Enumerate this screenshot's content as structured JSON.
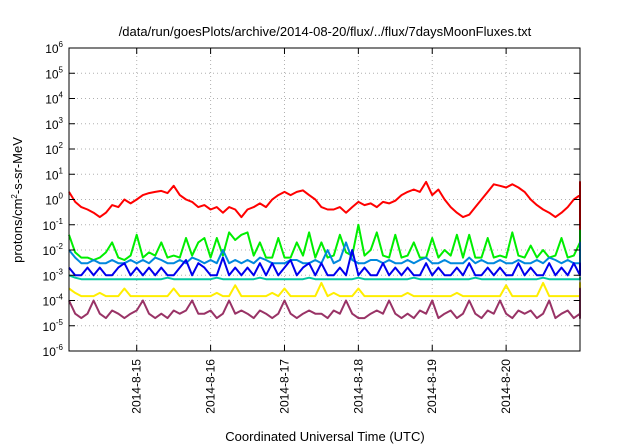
{
  "chart_data": {
    "type": "line",
    "title": "/data/run/goesPlots/archive/2014-08-20/flux/../flux/7daysMoonFluxes.txt",
    "xlabel": "Coordinated Universal Time (UTC)",
    "ylabel": {
      "text": "protons/cm",
      "sup": "2",
      "suffix": "-s-sr-MeV"
    },
    "y_scale": "log",
    "ylim": [
      1e-06,
      1000000.0
    ],
    "y_ticks": [
      {
        "base": "10",
        "exp": "-6",
        "value": 1e-06
      },
      {
        "base": "10",
        "exp": "-5",
        "value": 1e-05
      },
      {
        "base": "10",
        "exp": "-4",
        "value": 0.0001
      },
      {
        "base": "10",
        "exp": "-3",
        "value": 0.001
      },
      {
        "base": "10",
        "exp": "-2",
        "value": 0.01
      },
      {
        "base": "10",
        "exp": "-1",
        "value": 0.1
      },
      {
        "base": "10",
        "exp": "0",
        "value": 1
      },
      {
        "base": "10",
        "exp": "1",
        "value": 10
      },
      {
        "base": "10",
        "exp": "2",
        "value": 100
      },
      {
        "base": "10",
        "exp": "3",
        "value": 1000
      },
      {
        "base": "10",
        "exp": "4",
        "value": 10000
      },
      {
        "base": "10",
        "exp": "5",
        "value": 100000
      },
      {
        "base": "10",
        "exp": "6",
        "value": 1000000
      }
    ],
    "xlim": [
      "2014-08-14 02:00",
      "2014-08-21 00:00"
    ],
    "x_ticks": [
      {
        "label": "2014-8-15",
        "value": "2014-08-15"
      },
      {
        "label": "2014-8-16",
        "value": "2014-08-16"
      },
      {
        "label": "2014-8-17",
        "value": "2014-08-17"
      },
      {
        "label": "2014-8-18",
        "value": "2014-08-18"
      },
      {
        "label": "2014-8-19",
        "value": "2014-08-19"
      },
      {
        "label": "2014-8-20",
        "value": "2014-08-20"
      }
    ],
    "grid": true,
    "x_start": "2014-08-14 02:00",
    "x_step_hours": 2,
    "series": [
      {
        "color": "#ff0000",
        "values": [
          2.0,
          0.8,
          0.5,
          0.4,
          0.3,
          0.2,
          0.3,
          0.6,
          0.5,
          1.0,
          0.7,
          1.0,
          1.5,
          1.8,
          2.0,
          2.2,
          1.8,
          3.5,
          1.5,
          1.0,
          0.8,
          0.5,
          0.6,
          0.4,
          0.5,
          0.3,
          0.5,
          0.4,
          0.2,
          0.4,
          0.5,
          0.7,
          0.5,
          1.0,
          1.5,
          2.0,
          1.5,
          2.0,
          2.3,
          1.5,
          1.0,
          0.5,
          0.4,
          0.4,
          0.5,
          0.3,
          0.5,
          0.8,
          0.6,
          0.7,
          0.5,
          0.8,
          0.7,
          0.9,
          1.5,
          2.0,
          2.5,
          2.0,
          5.0,
          1.5,
          2.5,
          1.0,
          0.5,
          0.3,
          0.2,
          0.25,
          0.5,
          1.0,
          2.0,
          4.0,
          3.5,
          3.0,
          4.0,
          3.0,
          2.0,
          1.0,
          0.6,
          0.4,
          0.3,
          0.2,
          0.3,
          0.5,
          1.0,
          1.5,
          2.0,
          2.5,
          3.0,
          3.5,
          4.0,
          3.0,
          2.0,
          1.5,
          0.7,
          0.3,
          0.2,
          0.05,
          0.1,
          0.08,
          0.1,
          0.07,
          0.3,
          0.6,
          1.0,
          2.0,
          5.0,
          3.5,
          2.0,
          1.5,
          1.0,
          0.5,
          0.3,
          0.2,
          0.25,
          0.2,
          0.3,
          0.2,
          0.3,
          0.4,
          0.5,
          0.7,
          1.0,
          1.5,
          1.2,
          0.8
        ]
      },
      {
        "color": "#00ee00",
        "values": [
          0.04,
          0.008,
          0.005,
          0.005,
          0.004,
          0.005,
          0.008,
          0.02,
          0.005,
          0.004,
          0.006,
          0.04,
          0.005,
          0.008,
          0.006,
          0.02,
          0.005,
          0.006,
          0.005,
          0.03,
          0.006,
          0.02,
          0.03,
          0.005,
          0.03,
          0.006,
          0.05,
          0.025,
          0.04,
          0.05,
          0.006,
          0.02,
          0.005,
          0.005,
          0.03,
          0.005,
          0.005,
          0.02,
          0.006,
          0.05,
          0.005,
          0.02,
          0.005,
          0.006,
          0.04,
          0.008,
          0.006,
          0.1,
          0.006,
          0.01,
          0.05,
          0.006,
          0.005,
          0.04,
          0.005,
          0.006,
          0.02,
          0.005,
          0.005,
          0.03,
          0.005,
          0.01,
          0.006,
          0.04,
          0.005,
          0.04,
          0.005,
          0.005,
          0.03,
          0.005,
          0.006,
          0.005,
          0.05,
          0.006,
          0.005,
          0.015,
          0.005,
          0.01,
          0.005,
          0.006,
          0.03,
          0.005,
          0.006,
          0.02,
          0.005,
          0.006,
          0.005,
          0.01,
          0.005,
          0.03,
          0.008,
          0.005,
          0.005,
          0.004,
          0.005,
          0.005,
          0.01,
          0.005,
          0.005,
          0.02,
          0.005,
          0.006,
          0.03,
          0.005,
          0.06,
          0.005,
          0.005,
          0.004,
          0.004,
          0.004,
          0.005,
          0.01,
          0.005,
          0.006,
          0.006,
          0.005,
          0.005,
          0.004,
          0.004,
          0.005,
          0.004,
          0.006,
          0.006,
          0.006
        ]
      },
      {
        "color": "#0088dd",
        "values": [
          0.01,
          0.005,
          0.003,
          0.003,
          0.004,
          0.003,
          0.003,
          0.004,
          0.003,
          0.003,
          0.004,
          0.003,
          0.004,
          0.003,
          0.005,
          0.004,
          0.003,
          0.003,
          0.004,
          0.003,
          0.005,
          0.004,
          0.003,
          0.004,
          0.003,
          0.01,
          0.003,
          0.004,
          0.003,
          0.004,
          0.003,
          0.005,
          0.004,
          0.003,
          0.003,
          0.003,
          0.004,
          0.004,
          0.003,
          0.003,
          0.004,
          0.003,
          0.01,
          0.003,
          0.004,
          0.02,
          0.004,
          0.003,
          0.003,
          0.004,
          0.004,
          0.003,
          0.004,
          0.003,
          0.003,
          0.004,
          0.003,
          0.004,
          0.005,
          0.003,
          0.003,
          0.004,
          0.003,
          0.003,
          0.003,
          0.005,
          0.003,
          0.004,
          0.003,
          0.003,
          0.004,
          0.003,
          0.003,
          0.004,
          0.003,
          0.003,
          0.004,
          0.003,
          0.005,
          0.004,
          0.003,
          0.004,
          0.003,
          0.003,
          0.004,
          0.003,
          0.004,
          0.003,
          0.003,
          0.004,
          0.003,
          0.003,
          0.004,
          0.003,
          0.004,
          0.003,
          0.003,
          0.004,
          0.003,
          0.003,
          0.004,
          0.003,
          0.004,
          0.003,
          0.02,
          0.003,
          0.004,
          0.003,
          0.003,
          0.004,
          0.003,
          0.003,
          0.004,
          0.003,
          0.003,
          0.004,
          0.004,
          0.003,
          0.003,
          0.004,
          0.003,
          0.004,
          0.004,
          0.004
        ]
      },
      {
        "color": "#0000ee",
        "values": [
          0.002,
          0.001,
          0.001,
          0.002,
          0.001,
          0.002,
          0.001,
          0.001,
          0.002,
          0.003,
          0.001,
          0.002,
          0.001,
          0.002,
          0.001,
          0.002,
          0.001,
          0.001,
          0.002,
          0.004,
          0.001,
          0.003,
          0.002,
          0.001,
          0.001,
          0.005,
          0.001,
          0.002,
          0.001,
          0.002,
          0.001,
          0.003,
          0.001,
          0.003,
          0.001,
          0.002,
          0.004,
          0.001,
          0.002,
          0.003,
          0.001,
          0.003,
          0.001,
          0.001,
          0.002,
          0.001,
          0.01,
          0.001,
          0.002,
          0.001,
          0.001,
          0.003,
          0.001,
          0.002,
          0.001,
          0.002,
          0.001,
          0.001,
          0.003,
          0.001,
          0.002,
          0.001,
          0.001,
          0.002,
          0.001,
          0.003,
          0.001,
          0.001,
          0.002,
          0.001,
          0.002,
          0.001,
          0.001,
          0.003,
          0.001,
          0.002,
          0.001,
          0.001,
          0.003,
          0.001,
          0.002,
          0.001,
          0.003,
          0.001,
          0.002,
          0.001,
          0.001,
          0.002,
          0.001,
          0.002,
          0.001,
          0.001,
          0.003,
          0.001,
          0.001,
          0.002,
          0.003,
          0.001,
          0.001,
          0.002,
          0.001,
          0.001,
          0.002,
          0.001,
          0.003,
          0.001,
          0.002,
          0.001,
          0.001,
          0.002,
          0.001,
          0.002,
          0.001,
          0.001,
          0.003,
          0.001,
          0.001,
          0.002,
          0.001,
          0.001,
          0.002,
          0.001,
          0.001,
          0.001
        ]
      },
      {
        "color": "#00c8a0",
        "values": [
          0.001,
          0.0008,
          0.0007,
          0.0007,
          0.0007,
          0.0007,
          0.0007,
          0.0007,
          0.0007,
          0.0007,
          0.0007,
          0.0007,
          0.0007,
          0.0007,
          0.0007,
          0.0007,
          0.0008,
          0.0007,
          0.0007,
          0.0007,
          0.0007,
          0.0007,
          0.0007,
          0.0007,
          0.0008,
          0.0007,
          0.0007,
          0.0007,
          0.0007,
          0.0007,
          0.0007,
          0.0008,
          0.0007,
          0.0007,
          0.0007,
          0.0007,
          0.0007,
          0.0007,
          0.0007,
          0.0008,
          0.0007,
          0.0007,
          0.0007,
          0.0007,
          0.0007,
          0.0007,
          0.0007,
          0.0008,
          0.0007,
          0.0007,
          0.0007,
          0.0007,
          0.0007,
          0.0007,
          0.0007,
          0.0007,
          0.0008,
          0.0007,
          0.0007,
          0.0007,
          0.0007,
          0.0007,
          0.0007,
          0.0007,
          0.0007,
          0.0007,
          0.0008,
          0.0007,
          0.0007,
          0.0007,
          0.0007,
          0.0007,
          0.0007,
          0.0007,
          0.0007,
          0.0007,
          0.0007,
          0.0008,
          0.0007,
          0.0007,
          0.0007,
          0.0007,
          0.0007,
          0.0007,
          0.0007,
          0.0007,
          0.0007,
          0.0008,
          0.0007,
          0.0007,
          0.0007,
          0.0007,
          0.0007,
          0.0007,
          0.0007,
          0.0007,
          0.0007,
          0.0008,
          0.0007,
          0.0007,
          0.0007,
          0.0007,
          0.0007,
          0.0007,
          0.0007,
          0.0007,
          0.0007,
          0.0008,
          0.0007,
          0.0007,
          0.0007,
          0.0007,
          0.0007,
          0.0007,
          0.0007,
          0.0007,
          0.0007,
          0.0008,
          0.0007,
          0.0007,
          0.0007,
          0.0007,
          0.0007,
          0.0007
        ]
      },
      {
        "color": "#ffee00",
        "values": [
          0.0003,
          0.0002,
          0.00015,
          0.00015,
          0.00015,
          0.0002,
          0.00015,
          0.00015,
          0.00015,
          0.0003,
          0.00015,
          0.00015,
          0.00015,
          0.00015,
          0.00015,
          0.00015,
          0.00015,
          0.0003,
          0.00015,
          0.00015,
          0.00015,
          0.00015,
          0.00015,
          0.00015,
          0.0002,
          0.00015,
          0.00015,
          0.0004,
          0.00015,
          0.00015,
          0.00015,
          0.00015,
          0.00015,
          0.0002,
          0.00015,
          0.0003,
          0.00015,
          0.00015,
          0.00015,
          0.00015,
          0.00015,
          0.0005,
          0.00015,
          0.0002,
          0.00015,
          0.00015,
          0.00015,
          0.0003,
          0.00015,
          0.00015,
          0.00015,
          0.00015,
          0.00015,
          0.00015,
          0.00015,
          0.0002,
          0.00015,
          0.00015,
          0.00015,
          0.00015,
          0.00015,
          0.00015,
          0.00015,
          0.0002,
          0.00015,
          0.00015,
          0.00015,
          0.00015,
          0.00015,
          0.00015,
          0.00015,
          0.0004,
          0.00015,
          0.00015,
          0.00015,
          0.00015,
          0.00015,
          0.0005,
          0.00015,
          0.00015,
          0.00015,
          0.00015,
          0.00015,
          0.00015,
          0.00015,
          0.0002,
          0.00015,
          0.00015,
          0.00015,
          0.00015,
          0.00015,
          0.00015,
          0.00015,
          0.0002,
          0.00015,
          0.00015,
          0.00015,
          0.00015,
          0.00015,
          0.00015,
          0.00015,
          0.0003,
          0.00015,
          0.00015,
          0.00015,
          0.00015,
          0.00015,
          0.00015,
          0.00015,
          0.00015,
          0.00015,
          0.00015,
          0.00015,
          0.00015,
          0.00015,
          0.0005,
          0.00015,
          0.00015,
          0.00015,
          0.00015,
          0.00015,
          0.00015,
          0.00015,
          0.00015
        ]
      },
      {
        "color": "#993366",
        "values": [
          0.0001,
          3e-05,
          2e-05,
          3e-05,
          0.0001,
          3e-05,
          2e-05,
          4e-05,
          3e-05,
          2e-05,
          3e-05,
          4e-05,
          0.0001,
          3e-05,
          2e-05,
          3e-05,
          2e-05,
          4e-05,
          3e-05,
          4e-05,
          0.0001,
          3e-05,
          3e-05,
          4e-05,
          2e-05,
          3e-05,
          0.0001,
          3e-05,
          4e-05,
          3e-05,
          2e-05,
          4e-05,
          3e-05,
          2e-05,
          3e-05,
          0.0001,
          3e-05,
          2e-05,
          3e-05,
          4e-05,
          3e-05,
          3e-05,
          2e-05,
          4e-05,
          3e-05,
          0.0001,
          3e-05,
          2e-05,
          2e-05,
          3e-05,
          4e-05,
          3e-05,
          0.0001,
          3e-05,
          2e-05,
          3e-05,
          2e-05,
          4e-05,
          3e-05,
          0.0001,
          2e-05,
          3e-05,
          4e-05,
          2e-05,
          3e-05,
          0.0001,
          3e-05,
          2e-05,
          4e-05,
          3e-05,
          0.0001,
          3e-05,
          2e-05,
          4e-05,
          3e-05,
          4e-05,
          2e-05,
          3e-05,
          0.0001,
          2e-05,
          3e-05,
          4e-05,
          2e-05,
          3e-05,
          0.0001,
          3e-05,
          2e-05,
          3e-05,
          4e-05,
          2e-05,
          3e-05,
          0.0001,
          3e-05,
          2e-05,
          3e-05,
          4e-05,
          3e-05,
          2e-05,
          0.0001,
          3e-05,
          2e-05,
          4e-05,
          3e-05,
          0.0001,
          2e-05,
          3e-05,
          4e-05,
          3e-05,
          2e-05,
          3e-05,
          0.0001,
          2e-05,
          3e-05,
          4e-05,
          0.0003,
          3e-05,
          2e-05,
          0.0002,
          3e-05,
          2e-05,
          3e-05,
          0.0001,
          3e-05,
          2e-05,
          0.0001
        ]
      }
    ]
  }
}
